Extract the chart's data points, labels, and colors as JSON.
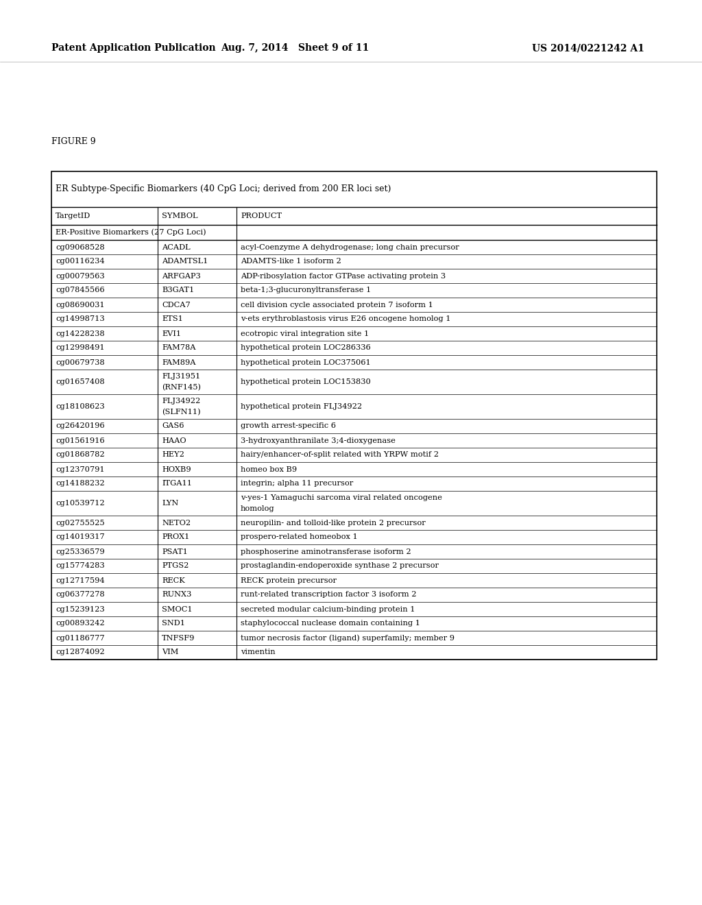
{
  "page_header_left": "Patent Application Publication",
  "page_header_mid": "Aug. 7, 2014   Sheet 9 of 11",
  "page_header_right": "US 2014/0221242 A1",
  "figure_label": "FIGURE 9",
  "table_title": "ER Subtype-Specific Biomarkers (40 CpG Loci; derived from 200 ER loci set)",
  "col_headers": [
    "TargetID",
    "SYMBOL",
    "PRODUCT"
  ],
  "section_header": "ER-Positive Biomarkers (27 CpG Loci)",
  "rows": [
    [
      "cg09068528",
      "ACADL",
      "acyl-Coenzyme A dehydrogenase; long chain precursor"
    ],
    [
      "cg00116234",
      "ADAMTSL1",
      "ADAMTS-like 1 isoform 2"
    ],
    [
      "cg00079563",
      "ARFGAP3",
      "ADP-ribosylation factor GTPase activating protein 3"
    ],
    [
      "cg07845566",
      "B3GAT1",
      "beta-1;3-glucuronyltransferase 1"
    ],
    [
      "cg08690031",
      "CDCA7",
      "cell division cycle associated protein 7 isoform 1"
    ],
    [
      "cg14998713",
      "ETS1",
      "v-ets erythroblastosis virus E26 oncogene homolog 1"
    ],
    [
      "cg14228238",
      "EVI1",
      "ecotropic viral integration site 1"
    ],
    [
      "cg12998491",
      "FAM78A",
      "hypothetical protein LOC286336"
    ],
    [
      "cg00679738",
      "FAM89A",
      "hypothetical protein LOC375061"
    ],
    [
      "cg01657408",
      "FLJ31951\n(RNF145)",
      "hypothetical protein LOC153830"
    ],
    [
      "cg18108623",
      "FLJ34922\n(SLFN11)",
      "hypothetical protein FLJ34922"
    ],
    [
      "cg26420196",
      "GAS6",
      "growth arrest-specific 6"
    ],
    [
      "cg01561916",
      "HAAO",
      "3-hydroxyanthranilate 3;4-dioxygenase"
    ],
    [
      "cg01868782",
      "HEY2",
      "hairy/enhancer-of-split related with YRPW motif 2"
    ],
    [
      "cg12370791",
      "HOXB9",
      "homeo box B9"
    ],
    [
      "cg14188232",
      "ITGA11",
      "integrin; alpha 11 precursor"
    ],
    [
      "cg10539712",
      "LYN",
      "v-yes-1 Yamaguchi sarcoma viral related oncogene\nhomolog"
    ],
    [
      "cg02755525",
      "NETO2",
      "neuropilin- and tolloid-like protein 2 precursor"
    ],
    [
      "cg14019317",
      "PROX1",
      "prospero-related homeobox 1"
    ],
    [
      "cg25336579",
      "PSAT1",
      "phosphoserine aminotransferase isoform 2"
    ],
    [
      "cg15774283",
      "PTGS2",
      "prostaglandin-endoperoxide synthase 2 precursor"
    ],
    [
      "cg12717594",
      "RECK",
      "RECK protein precursor"
    ],
    [
      "cg06377278",
      "RUNX3",
      "runt-related transcription factor 3 isoform 2"
    ],
    [
      "cg15239123",
      "SMOC1",
      "secreted modular calcium-binding protein 1"
    ],
    [
      "cg00893242",
      "SND1",
      "staphylococcal nuclease domain containing 1"
    ],
    [
      "cg01186777",
      "TNFSF9",
      "tumor necrosis factor (ligand) superfamily; member 9"
    ],
    [
      "cg12874092",
      "VIM",
      "vimentin"
    ]
  ],
  "bg_color": "#ffffff",
  "text_color": "#000000",
  "border_color": "#000000",
  "header_font_size": 9.0,
  "table_font_size": 8.2,
  "page_header_font_size": 10.0,
  "figure_font_size": 9.0
}
